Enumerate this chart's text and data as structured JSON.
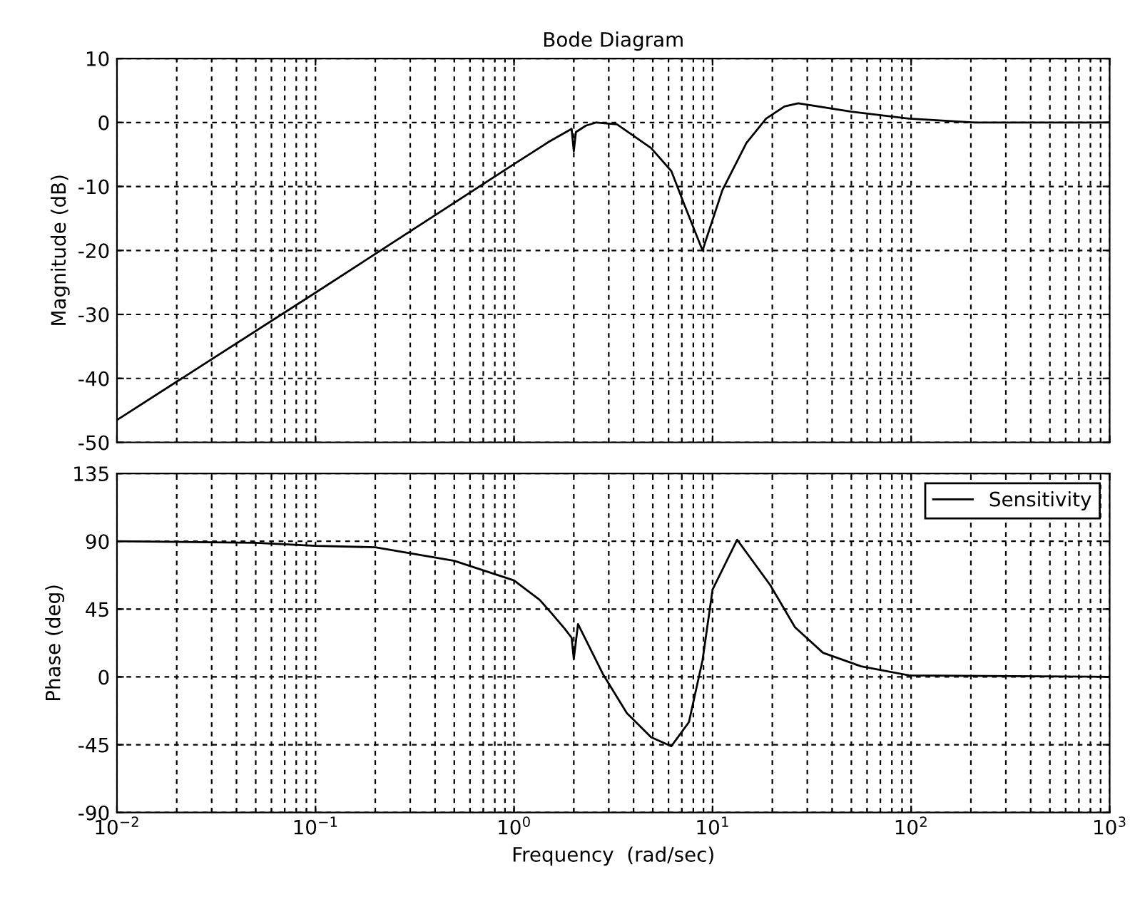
{
  "chart_data": [
    {
      "type": "line",
      "title": "Bode Diagram",
      "ylabel": "Magnitude (dB)",
      "log": "x",
      "grid": true,
      "legend": false,
      "tick_labels": "y",
      "line_style": "solid",
      "marker": "none",
      "xlim": [
        0.01,
        1000
      ],
      "xticks": [
        {
          "value": 0.01,
          "label": null
        },
        {
          "value": 0.1,
          "label": null
        },
        {
          "value": 1,
          "label": null
        },
        {
          "value": 10,
          "label": null
        },
        {
          "value": 100,
          "label": null
        },
        {
          "value": 1000,
          "label": null
        }
      ],
      "ylim": [
        -50,
        10
      ],
      "yticks": [
        -50,
        -40,
        -30,
        -20,
        -10,
        0,
        10
      ],
      "series": [
        {
          "color": "#000000",
          "x": [
            0.01,
            0.1,
            1,
            1.5,
            1.95,
            2.0,
            2.05,
            2.3,
            2.6,
            3.3,
            4.9,
            6.2,
            7.2,
            8.9,
            11.2,
            14.8,
            18.6,
            23,
            27,
            50,
            98,
            210,
            1000
          ],
          "values": [
            -46.5,
            -26.6,
            -6.5,
            -3,
            -1,
            -4.5,
            -1.5,
            -0.5,
            0,
            -0.3,
            -4,
            -7.6,
            -12.8,
            -20,
            -10.6,
            -3.2,
            0.6,
            2.5,
            3,
            1.7,
            0.6,
            0,
            0
          ]
        }
      ]
    },
    {
      "type": "line",
      "xlabel": "Frequency  (rad/sec)",
      "ylabel": "Phase (deg)",
      "log": "x",
      "grid": true,
      "legend": "top right",
      "line_style": "solid",
      "marker": "none",
      "xlim": [
        0.01,
        1000
      ],
      "xticks": [
        {
          "value": 0.01,
          "label": "10$^{−2}$"
        },
        {
          "value": 0.1,
          "label": "10$^{−1}$"
        },
        {
          "value": 1,
          "label": "10$^{0}$"
        },
        {
          "value": 10,
          "label": "10$^{1}$"
        },
        {
          "value": 100,
          "label": "10$^{2}$"
        },
        {
          "value": 1000,
          "label": "10$^{3}$"
        }
      ],
      "ylim": [
        -90,
        135
      ],
      "yticks": [
        -90,
        -45,
        0,
        45,
        90,
        135
      ],
      "series": [
        {
          "name": "Sensitivity",
          "color": "#000000",
          "x": [
            0.01,
            0.05,
            0.1,
            0.2,
            0.5,
            1,
            1.35,
            1.55,
            1.8,
            1.95,
            2.0,
            2.1,
            2.8,
            3.7,
            4.9,
            6.2,
            7.6,
            8.9,
            10,
            13.3,
            19.5,
            26,
            36,
            56,
            98,
            1000
          ],
          "values": [
            90,
            89,
            87,
            86,
            77,
            64,
            51,
            42,
            32,
            26,
            12,
            35,
            2,
            -24,
            -40,
            -46,
            -30,
            11,
            58,
            91,
            61,
            33,
            16,
            7,
            1,
            0
          ]
        }
      ]
    }
  ]
}
